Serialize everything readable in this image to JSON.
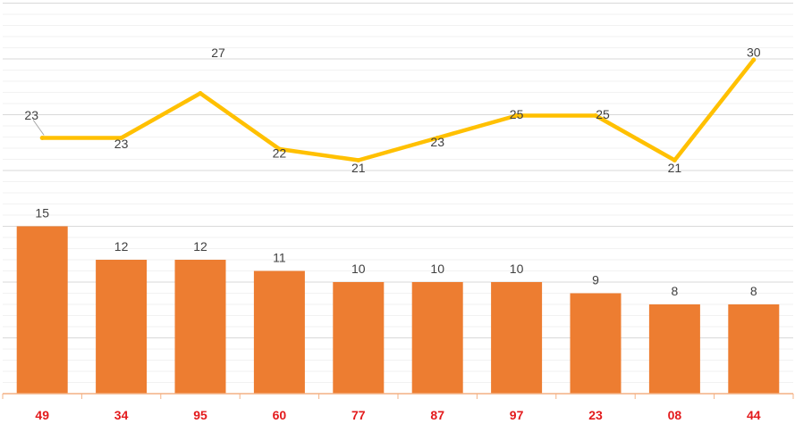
{
  "chart_data": {
    "type": "bar",
    "categories": [
      "49",
      "34",
      "95",
      "60",
      "77",
      "87",
      "97",
      "23",
      "08",
      "44"
    ],
    "series": [
      {
        "type": "bar",
        "values": [
          15,
          12,
          12,
          11,
          10,
          10,
          10,
          9,
          8,
          8
        ]
      },
      {
        "type": "line",
        "values": [
          23,
          23,
          27,
          22,
          21,
          23,
          25,
          25,
          21,
          30
        ]
      }
    ],
    "colors": {
      "bar": "#ED7D31",
      "line": "#FFC000",
      "category_label": "#E31A1C",
      "data_label": "#404040",
      "gridline_major": "#D9D9D9",
      "gridline_minor": "#F2F2F2"
    },
    "grid": true,
    "legend": "none"
  }
}
